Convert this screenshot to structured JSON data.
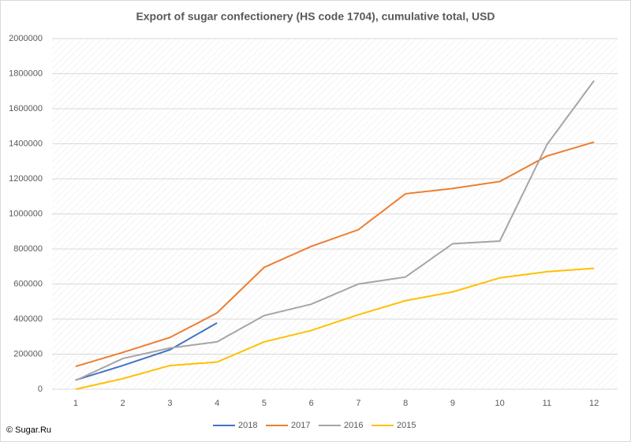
{
  "chart_data": {
    "type": "line",
    "title": "Export of sugar confectionery (HS code 1704), cumulative total, USD",
    "source": "© Sugar.Ru",
    "categories": [
      "1",
      "2",
      "3",
      "4",
      "5",
      "6",
      "7",
      "8",
      "9",
      "10",
      "11",
      "12"
    ],
    "series": [
      {
        "name": "2018",
        "color": "#4472c4",
        "values": [
          52000,
          135000,
          225000,
          378000,
          null,
          null,
          null,
          null,
          null,
          null,
          null,
          null
        ]
      },
      {
        "name": "2017",
        "color": "#ed7d31",
        "values": [
          130000,
          210000,
          295000,
          435000,
          695000,
          815000,
          910000,
          1115000,
          1145000,
          1185000,
          1330000,
          1410000
        ]
      },
      {
        "name": "2016",
        "color": "#a5a5a5",
        "values": [
          50000,
          175000,
          235000,
          270000,
          420000,
          485000,
          600000,
          640000,
          830000,
          845000,
          1395000,
          1760000
        ]
      },
      {
        "name": "2015",
        "color": "#ffc000",
        "values": [
          0,
          60000,
          135000,
          155000,
          270000,
          335000,
          425000,
          505000,
          555000,
          635000,
          670000,
          690000
        ]
      }
    ],
    "ylim": [
      0,
      2000000
    ],
    "yticks": [
      0,
      200000,
      400000,
      600000,
      800000,
      1000000,
      1200000,
      1400000,
      1600000,
      1800000,
      2000000
    ],
    "grid": true,
    "legend": "bottom"
  }
}
